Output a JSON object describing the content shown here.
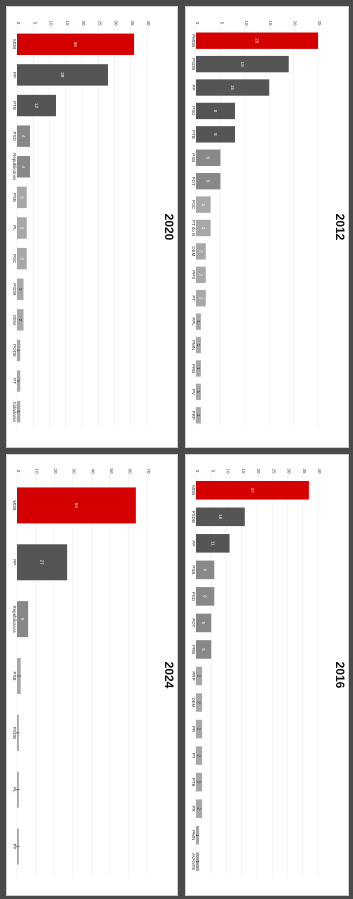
{
  "chart_data": [
    {
      "type": "bar",
      "title": "2012",
      "categories": [
        "PMDB",
        "PSDB",
        "PP",
        "PSD",
        "PTB",
        "PSB",
        "PDT",
        "PSC",
        "PT do B",
        "DEM",
        "PPS",
        "PT",
        "PPL",
        "PMN",
        "PRB",
        "PV",
        "PRP"
      ],
      "values": [
        25,
        19,
        15,
        8,
        8,
        5,
        5,
        3,
        3,
        2,
        2,
        2,
        1,
        1,
        1,
        1,
        1
      ],
      "ylim": [
        0,
        25
      ],
      "ticks": [
        0,
        5,
        10,
        15,
        20,
        25
      ],
      "highlight": "PMDB",
      "colors": {
        "highlight": "#d40000",
        "dark": "#555555",
        "mid": "#888888",
        "light": "#a8a8a8"
      }
    },
    {
      "type": "bar",
      "title": "2020",
      "categories": [
        "MDB",
        "PP",
        "PTB",
        "PSD",
        "Republicanos",
        "PSB",
        "PL",
        "PSC",
        "PSDB",
        "DEM",
        "PODE",
        "PT",
        "Cidadania"
      ],
      "values": [
        36,
        28,
        12,
        4,
        4,
        3,
        3,
        3,
        2,
        2,
        1,
        1,
        1
      ],
      "ylim": [
        0,
        40
      ],
      "ticks": [
        0,
        5,
        10,
        15,
        20,
        25,
        30,
        35,
        40
      ],
      "highlight": "MDB",
      "colors": {
        "highlight": "#d40000",
        "dark": "#555555",
        "mid": "#888888",
        "light": "#a8a8a8"
      }
    },
    {
      "type": "bar",
      "title": "2016",
      "categories": [
        "MDB",
        "PSDB",
        "PP",
        "PSB",
        "PSD",
        "PDT",
        "PRB",
        "PRP",
        "DEM",
        "PR",
        "PT",
        "PTB",
        "PR",
        "PMN",
        "AVANTE"
      ],
      "values": [
        37,
        16,
        11,
        6,
        6,
        5,
        5,
        2,
        2,
        2,
        2,
        2,
        2,
        1,
        1
      ],
      "ylim": [
        0,
        40
      ],
      "ticks": [
        0,
        5,
        10,
        15,
        20,
        25,
        30,
        35,
        40
      ],
      "highlight": "MDB",
      "colors": {
        "highlight": "#d40000",
        "dark": "#555555",
        "mid": "#888888",
        "light": "#a8a8a8"
      }
    },
    {
      "type": "bar",
      "title": "2024",
      "categories": [
        "MDB",
        "PP",
        "Republicanos",
        "PSB",
        "PSDB",
        "PL",
        "PT"
      ],
      "values": [
        64,
        27,
        6,
        2,
        1,
        1,
        1
      ],
      "ylim": [
        0,
        70
      ],
      "ticks": [
        0,
        10,
        20,
        30,
        40,
        50,
        60,
        70
      ],
      "highlight": "MDB",
      "colors": {
        "highlight": "#d40000",
        "dark": "#555555",
        "mid": "#888888",
        "light": "#a8a8a8"
      }
    }
  ]
}
